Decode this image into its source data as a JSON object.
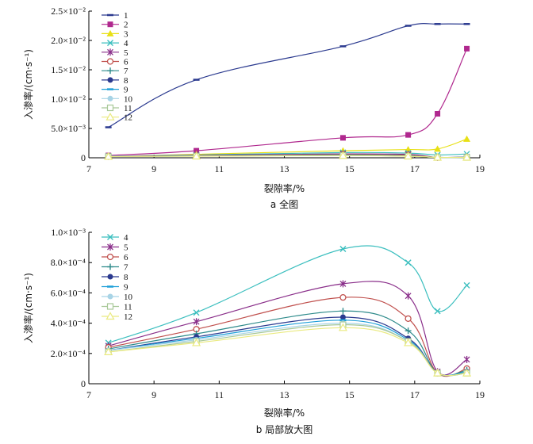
{
  "chart_data": [
    {
      "type": "line",
      "caption": "a 全图",
      "xlabel": "裂隙率/%",
      "ylabel": "入渗率/(cm·s⁻¹)",
      "xlim": [
        7,
        19
      ],
      "ylim": [
        0,
        0.025
      ],
      "xticks": [
        7,
        9,
        11,
        13,
        15,
        17,
        19
      ],
      "yticks": [
        {
          "v": 0,
          "t": "0"
        },
        {
          "v": 0.005,
          "t": "5.0×10⁻³"
        },
        {
          "v": 0.01,
          "t": "1.0×10⁻²"
        },
        {
          "v": 0.015,
          "t": "1.5×10⁻²"
        },
        {
          "v": 0.02,
          "t": "2.0×10⁻²"
        },
        {
          "v": 0.025,
          "t": "2.5×10⁻²"
        }
      ],
      "legend_position": "top-left",
      "x": [
        7.6,
        10.3,
        14.8,
        16.8,
        17.7,
        18.6
      ],
      "series": [
        {
          "name": "1",
          "color": "#2b3a8f",
          "marker": "dash",
          "values": [
            0.0052,
            0.0133,
            0.019,
            0.0225,
            0.0228,
            0.0228
          ]
        },
        {
          "name": "2",
          "color": "#b0288e",
          "marker": "square",
          "values": [
            0.0004,
            0.0012,
            0.0034,
            0.0039,
            0.0075,
            0.0186
          ]
        },
        {
          "name": "3",
          "color": "#e8e015",
          "marker": "triangle",
          "values": [
            0.0002,
            0.0006,
            0.0012,
            0.0014,
            0.0015,
            0.0032
          ]
        },
        {
          "name": "4",
          "color": "#3cbfbf",
          "marker": "x",
          "values": [
            0.00027,
            0.00047,
            0.00089,
            0.0008,
            0.00048,
            0.00065
          ]
        },
        {
          "name": "5",
          "color": "#8a2f8a",
          "marker": "star",
          "values": [
            0.00025,
            0.00041,
            0.00066,
            0.00058,
            8e-05,
            0.00016
          ]
        },
        {
          "name": "6",
          "color": "#c0504d",
          "marker": "circle-open",
          "values": [
            0.00024,
            0.00036,
            0.00057,
            0.00043,
            7e-05,
            0.0001
          ]
        },
        {
          "name": "7",
          "color": "#2e8b8b",
          "marker": "plus",
          "values": [
            0.00023,
            0.00033,
            0.00048,
            0.00035,
            7e-05,
            9e-05
          ]
        },
        {
          "name": "8",
          "color": "#2b3a8f",
          "marker": "circle-filled",
          "values": [
            0.00022,
            0.00031,
            0.00044,
            0.0003,
            7e-05,
            8e-05
          ]
        },
        {
          "name": "9",
          "color": "#1e9fd8",
          "marker": "dash",
          "values": [
            0.00022,
            0.0003,
            0.00042,
            0.00029,
            7e-05,
            8e-05
          ]
        },
        {
          "name": "10",
          "color": "#a8d4e6",
          "marker": "circle-filled",
          "values": [
            0.00022,
            0.00029,
            0.0004,
            0.00028,
            7e-05,
            7e-05
          ]
        },
        {
          "name": "11",
          "color": "#a8c898",
          "marker": "square-open",
          "values": [
            0.00021,
            0.00028,
            0.00039,
            0.00028,
            7e-05,
            7e-05
          ]
        },
        {
          "name": "12",
          "color": "#eaea80",
          "marker": "triangle-open",
          "values": [
            0.00021,
            0.00027,
            0.00037,
            0.00027,
            7e-05,
            7e-05
          ]
        }
      ]
    },
    {
      "type": "line",
      "caption": "b 局部放大图",
      "xlabel": "裂隙率/%",
      "ylabel": "入渗率/(cm·s⁻¹)",
      "xlim": [
        7,
        19
      ],
      "ylim": [
        0,
        0.001
      ],
      "xticks": [
        7,
        9,
        11,
        13,
        15,
        17,
        19
      ],
      "yticks": [
        {
          "v": 0,
          "t": "0"
        },
        {
          "v": 0.0002,
          "t": "2.0×10⁻⁴"
        },
        {
          "v": 0.0004,
          "t": "4.0×10⁻⁴"
        },
        {
          "v": 0.0006,
          "t": "6.0×10⁻⁴"
        },
        {
          "v": 0.0008,
          "t": "8.0×10⁻⁴"
        },
        {
          "v": 0.001,
          "t": "1.0×10⁻³"
        }
      ],
      "legend_position": "top-left",
      "x": [
        7.6,
        10.3,
        14.8,
        16.8,
        17.7,
        18.6
      ],
      "series": [
        {
          "name": "4",
          "color": "#3cbfbf",
          "marker": "x",
          "values": [
            0.00027,
            0.00047,
            0.00089,
            0.0008,
            0.00048,
            0.00065
          ]
        },
        {
          "name": "5",
          "color": "#8a2f8a",
          "marker": "star",
          "values": [
            0.00025,
            0.00041,
            0.00066,
            0.00058,
            8e-05,
            0.00016
          ]
        },
        {
          "name": "6",
          "color": "#c0504d",
          "marker": "circle-open",
          "values": [
            0.00024,
            0.00036,
            0.00057,
            0.00043,
            7e-05,
            0.0001
          ]
        },
        {
          "name": "7",
          "color": "#2e8b8b",
          "marker": "plus",
          "values": [
            0.00023,
            0.00033,
            0.00048,
            0.00035,
            7e-05,
            9e-05
          ]
        },
        {
          "name": "8",
          "color": "#2b3a8f",
          "marker": "circle-filled",
          "values": [
            0.00022,
            0.00031,
            0.00044,
            0.0003,
            7e-05,
            8e-05
          ]
        },
        {
          "name": "9",
          "color": "#1e9fd8",
          "marker": "dash",
          "values": [
            0.00022,
            0.0003,
            0.00042,
            0.00029,
            7e-05,
            8e-05
          ]
        },
        {
          "name": "10",
          "color": "#a8d4e6",
          "marker": "circle-filled",
          "values": [
            0.00022,
            0.00029,
            0.0004,
            0.00028,
            7e-05,
            7e-05
          ]
        },
        {
          "name": "11",
          "color": "#a8c898",
          "marker": "square-open",
          "values": [
            0.00021,
            0.00028,
            0.00039,
            0.00028,
            7e-05,
            7e-05
          ]
        },
        {
          "name": "12",
          "color": "#eaea80",
          "marker": "triangle-open",
          "values": [
            0.00021,
            0.00027,
            0.00037,
            0.00027,
            7e-05,
            7e-05
          ]
        }
      ]
    }
  ]
}
